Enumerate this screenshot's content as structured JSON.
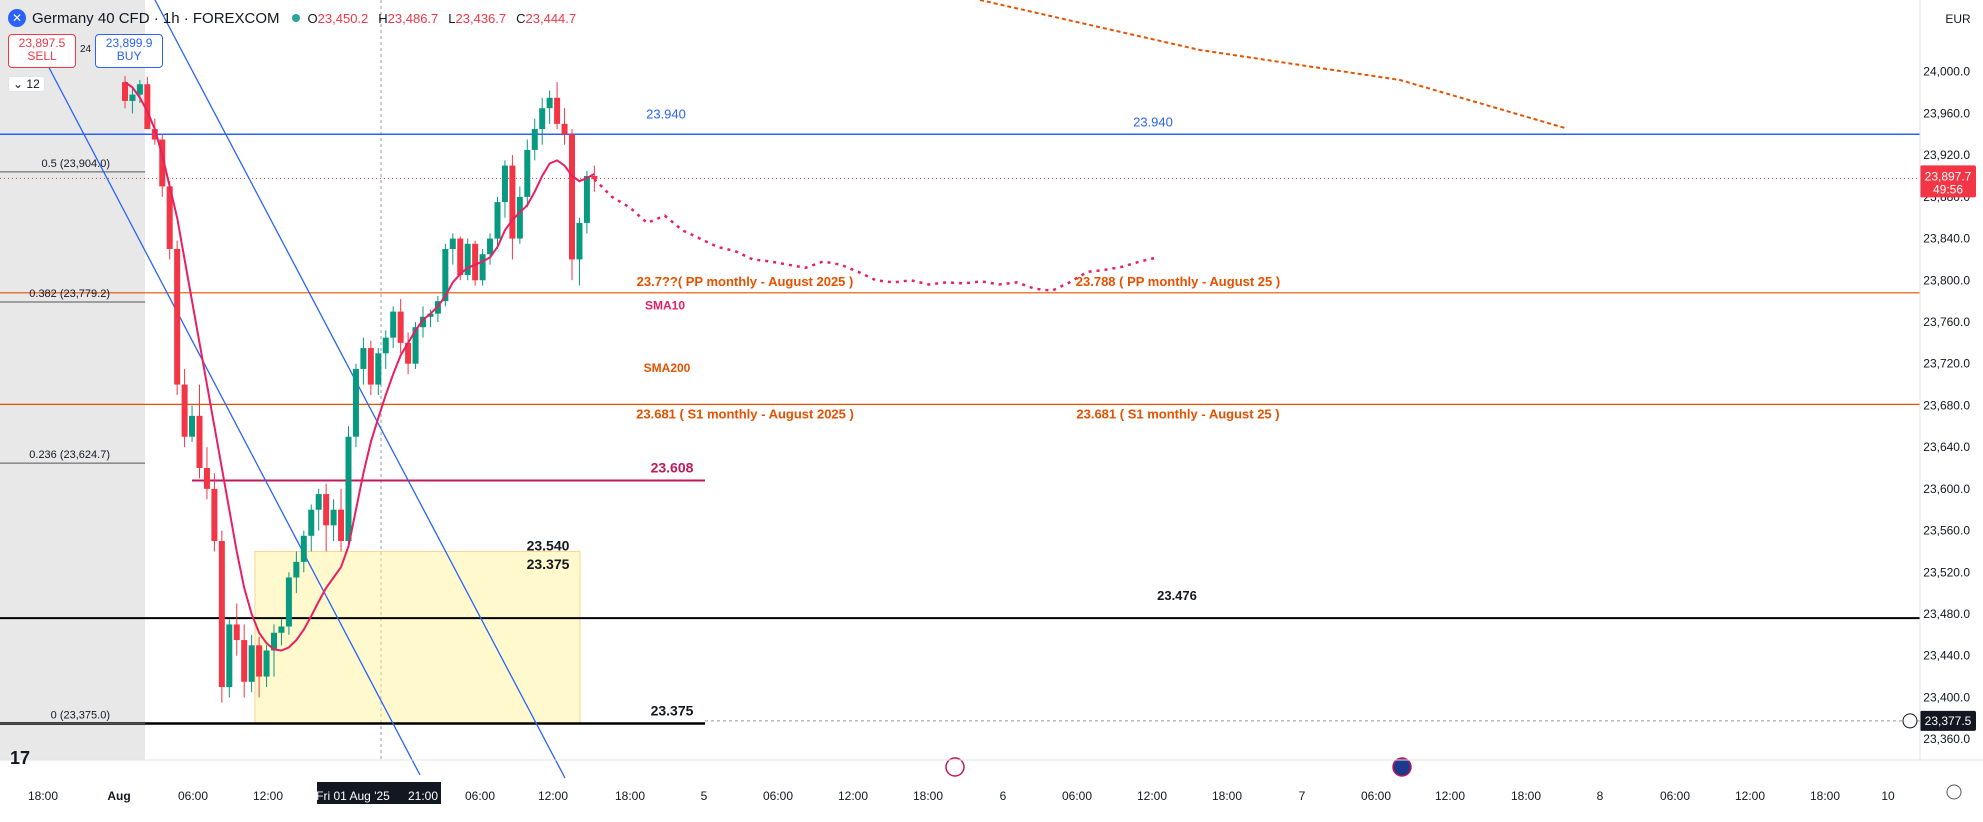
{
  "header": {
    "symbol": "Germany 40 CFD · 1h · FOREXCOM",
    "open": "23,450.2",
    "high": "23,486.7",
    "low": "23,436.7",
    "close": "23,444.7",
    "sell_price": "23,897.5",
    "sell_label": "SELL",
    "spread": "24",
    "buy_price": "23,899.9",
    "buy_label": "BUY",
    "indicator_count": "12",
    "currency": "EUR"
  },
  "colors": {
    "up": "#089981",
    "down": "#f23645",
    "sma": "#e91e63",
    "blue_line": "#2962ff",
    "orange": "#e65100",
    "magenta": "#c2185b"
  },
  "chart_data": {
    "type": "candlestick",
    "symbol": "Germany 40 CFD",
    "timeframe": "1h",
    "y_axis_ticks": [
      24000,
      23960,
      23920,
      23880,
      23840,
      23800,
      23760,
      23720,
      23680,
      23640,
      23600,
      23560,
      23520,
      23480,
      23440,
      23400,
      23360
    ],
    "y_axis_labels": [
      "24,000.0",
      "23,960.0",
      "23,920.0",
      "23,880.0",
      "23,840.0",
      "23,800.0",
      "23,760.0",
      "23,720.0",
      "23,680.0",
      "23,640.0",
      "23,600.0",
      "23,560.0",
      "23,520.0",
      "23,480.0",
      "23,440.0",
      "23,400.0",
      "23,360.0"
    ],
    "ylim": [
      23340,
      24040
    ],
    "x_axis_labels": [
      "18:00",
      "Aug",
      "06:00",
      "12:00",
      "Fri 01 Aug '25",
      "21:00",
      "06:00",
      "12:00",
      "18:00",
      "5",
      "06:00",
      "12:00",
      "18:00",
      "6",
      "06:00",
      "12:00",
      "18:00",
      "7",
      "06:00",
      "12:00",
      "18:00",
      "8",
      "06:00",
      "12:00",
      "18:00",
      "10"
    ],
    "candles": [
      [
        23990,
        23996,
        23965,
        23972
      ],
      [
        23972,
        23985,
        23960,
        23978
      ],
      [
        23978,
        23992,
        23970,
        23988
      ],
      [
        23988,
        23995,
        23950,
        23945
      ],
      [
        23945,
        23955,
        23930,
        23935
      ],
      [
        23935,
        23940,
        23880,
        23890
      ],
      [
        23890,
        23895,
        23820,
        23830
      ],
      [
        23830,
        23838,
        23690,
        23700
      ],
      [
        23700,
        23715,
        23640,
        23650
      ],
      [
        23650,
        23680,
        23645,
        23670
      ],
      [
        23670,
        23700,
        23610,
        23620
      ],
      [
        23620,
        23640,
        23590,
        23600
      ],
      [
        23600,
        23615,
        23540,
        23550
      ],
      [
        23550,
        23560,
        23395,
        23410
      ],
      [
        23410,
        23475,
        23400,
        23470
      ],
      [
        23470,
        23490,
        23440,
        23455
      ],
      [
        23455,
        23470,
        23400,
        23415
      ],
      [
        23415,
        23460,
        23405,
        23450
      ],
      [
        23450,
        23458,
        23400,
        23420
      ],
      [
        23420,
        23450,
        23410,
        23445
      ],
      [
        23445,
        23470,
        23420,
        23462
      ],
      [
        23462,
        23475,
        23450,
        23468
      ],
      [
        23468,
        23520,
        23460,
        23515
      ],
      [
        23515,
        23540,
        23500,
        23530
      ],
      [
        23530,
        23560,
        23520,
        23555
      ],
      [
        23555,
        23585,
        23540,
        23580
      ],
      [
        23580,
        23600,
        23560,
        23595
      ],
      [
        23595,
        23605,
        23540,
        23565
      ],
      [
        23565,
        23590,
        23550,
        23580
      ],
      [
        23580,
        23600,
        23540,
        23550
      ],
      [
        23550,
        23660,
        23545,
        23650
      ],
      [
        23650,
        23720,
        23640,
        23715
      ],
      [
        23715,
        23745,
        23700,
        23735
      ],
      [
        23735,
        23742,
        23690,
        23700
      ],
      [
        23700,
        23735,
        23690,
        23730
      ],
      [
        23730,
        23752,
        23715,
        23745
      ],
      [
        23745,
        23775,
        23735,
        23770
      ],
      [
        23770,
        23782,
        23730,
        23740
      ],
      [
        23740,
        23750,
        23710,
        23720
      ],
      [
        23720,
        23760,
        23715,
        23755
      ],
      [
        23755,
        23775,
        23745,
        23765
      ],
      [
        23765,
        23772,
        23755,
        23768
      ],
      [
        23768,
        23785,
        23760,
        23780
      ],
      [
        23780,
        23835,
        23775,
        23830
      ],
      [
        23830,
        23845,
        23815,
        23840
      ],
      [
        23840,
        23842,
        23800,
        23805
      ],
      [
        23805,
        23840,
        23800,
        23835
      ],
      [
        23835,
        23838,
        23795,
        23800
      ],
      [
        23800,
        23830,
        23795,
        23825
      ],
      [
        23825,
        23845,
        23815,
        23840
      ],
      [
        23840,
        23880,
        23830,
        23875
      ],
      [
        23875,
        23915,
        23860,
        23910
      ],
      [
        23910,
        23920,
        23820,
        23840
      ],
      [
        23840,
        23890,
        23835,
        23880
      ],
      [
        23880,
        23935,
        23870,
        23925
      ],
      [
        23925,
        23955,
        23915,
        23945
      ],
      [
        23945,
        23975,
        23930,
        23965
      ],
      [
        23965,
        23982,
        23950,
        23975
      ],
      [
        23975,
        23990,
        23945,
        23950
      ],
      [
        23950,
        23965,
        23930,
        23940
      ],
      [
        23940,
        23945,
        23800,
        23820
      ],
      [
        23820,
        23860,
        23795,
        23855
      ],
      [
        23855,
        23905,
        23845,
        23900
      ],
      [
        23900,
        23910,
        23885,
        23897
      ]
    ],
    "sma": [
      23990,
      23985,
      23975,
      23962,
      23945,
      23920,
      23890,
      23860,
      23820,
      23780,
      23740,
      23700,
      23660,
      23620,
      23580,
      23540,
      23505,
      23480,
      23462,
      23452,
      23446,
      23445,
      23448,
      23455,
      23465,
      23478,
      23492,
      23505,
      23515,
      23525,
      23545,
      23580,
      23615,
      23645,
      23668,
      23690,
      23710,
      23728,
      23740,
      23752,
      23762,
      23768,
      23775,
      23785,
      23798,
      23806,
      23812,
      23815,
      23818,
      23822,
      23832,
      23848,
      23858,
      23865,
      23872,
      23885,
      23900,
      23912,
      23915,
      23910,
      23900,
      23895,
      23898,
      23902
    ],
    "projection": [
      23897,
      23880,
      23870,
      23855,
      23862,
      23848,
      23840,
      23832,
      23828,
      23820,
      23818,
      23815,
      23812,
      23818,
      23815,
      23808,
      23800,
      23798,
      23800,
      23796,
      23798,
      23797,
      23799,
      23796,
      23798,
      23792,
      23790,
      23798,
      23808,
      23810,
      23813,
      23818,
      23822
    ],
    "orange_trend": [
      [
        23990,
        24040
      ],
      [
        23960,
        23965
      ],
      [
        23940,
        23940
      ]
    ],
    "levels": [
      {
        "value": 23940,
        "label": "23.940",
        "color": "#2962ff"
      },
      {
        "value": 23788,
        "label": "23.788 ( PP monthly - August 25 )",
        "color": "#e65100"
      },
      {
        "value": 23681,
        "label": "23.681 ( S1 monthly - August 25 )",
        "color": "#e65100"
      },
      {
        "value": 23608,
        "label": "23.608",
        "color": "#c2185b"
      },
      {
        "value": 23476,
        "label": "23.476",
        "color": "#000000"
      },
      {
        "value": 23375,
        "label": "23.375",
        "color": "#000000"
      }
    ],
    "annotations": {
      "pp_left": "23.7??( PP monthly - August 2025 )",
      "s1_left": "23.681 ( S1 monthly - August 2025 )",
      "blue_left": "23.940",
      "sma10": "SMA10",
      "sma200": "SMA200",
      "box_top": "23.540",
      "box_bottom": "23.375"
    },
    "fib": [
      {
        "label": "0.5 (23,904.0)",
        "value": 23904
      },
      {
        "label": "0.382 (23,779.2)",
        "value": 23779.2
      },
      {
        "label": "0.236 (23,624.7)",
        "value": 23624.7
      },
      {
        "label": "0 (23,375.0)",
        "value": 23375
      }
    ],
    "price_tags": [
      {
        "label": "23,897.7",
        "sub": "49:56",
        "value": 23897.7,
        "color": "#f23645"
      },
      {
        "label": "23,377.5",
        "value": 23377.5,
        "color": "#131722"
      }
    ]
  }
}
